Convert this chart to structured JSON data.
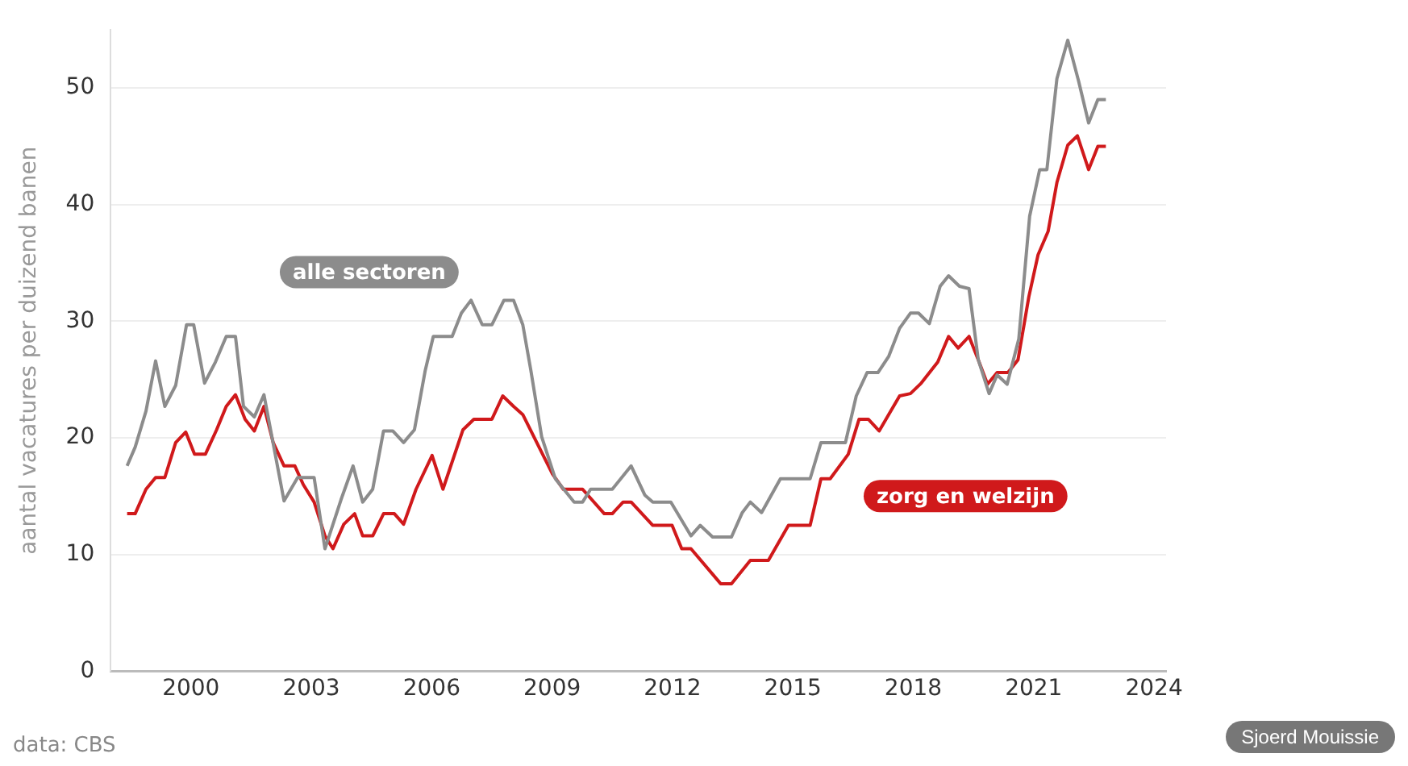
{
  "chart_data": {
    "type": "line",
    "ylabel": "aantal vacatures per duizend banen",
    "xlim": [
      1998,
      2024.3
    ],
    "xticks": [
      2000,
      2003,
      2006,
      2009,
      2012,
      2015,
      2018,
      2021,
      2024
    ],
    "ylim": [
      0,
      55
    ],
    "yticks": [
      0,
      10,
      20,
      30,
      40,
      50
    ],
    "grid": "y",
    "legend": false,
    "marker": "none",
    "line_style": "solid",
    "series": [
      {
        "name": "alle sectoren",
        "color": "#8c8c8c",
        "x": [
          1998.41,
          1998.61,
          1998.88,
          1999.12,
          1999.35,
          1999.62,
          1999.89,
          2000.07,
          2000.34,
          2000.61,
          2000.88,
          2001.11,
          2001.31,
          2001.58,
          2001.82,
          2002.32,
          2002.66,
          2003.07,
          2003.34,
          2003.74,
          2004.04,
          2004.28,
          2004.53,
          2004.8,
          2005.03,
          2005.3,
          2005.57,
          2005.84,
          2006.04,
          2006.51,
          2006.74,
          2006.98,
          2007.26,
          2007.5,
          2007.8,
          2008.04,
          2008.27,
          2008.47,
          2008.74,
          2009.08,
          2009.55,
          2009.76,
          2009.96,
          2010.5,
          2010.97,
          2011.31,
          2011.51,
          2011.96,
          2012.46,
          2012.69,
          2013.0,
          2013.47,
          2013.74,
          2013.94,
          2014.22,
          2014.69,
          2015.43,
          2015.7,
          2016.31,
          2016.58,
          2016.85,
          2017.12,
          2017.39,
          2017.66,
          2017.93,
          2018.13,
          2018.4,
          2018.67,
          2018.88,
          2019.15,
          2019.39,
          2019.62,
          2019.89,
          2020.09,
          2020.34,
          2020.63,
          2020.9,
          2021.15,
          2021.33,
          2021.58,
          2021.85,
          2022.12,
          2022.37,
          2022.6,
          2022.8
        ],
        "values": [
          17.6,
          19.2,
          22.3,
          26.6,
          22.7,
          24.5,
          29.7,
          29.7,
          24.7,
          26.5,
          28.7,
          28.7,
          22.7,
          21.8,
          23.7,
          14.6,
          16.6,
          16.6,
          10.5,
          14.7,
          17.6,
          14.5,
          15.6,
          20.6,
          20.6,
          19.6,
          20.7,
          25.8,
          28.7,
          28.7,
          30.7,
          31.8,
          29.7,
          29.7,
          31.8,
          31.8,
          29.7,
          25.8,
          20.1,
          16.5,
          14.5,
          14.5,
          15.6,
          15.6,
          17.6,
          15.1,
          14.5,
          14.5,
          11.6,
          12.5,
          11.5,
          11.5,
          13.6,
          14.5,
          13.6,
          16.5,
          16.5,
          19.6,
          19.6,
          23.6,
          25.6,
          25.6,
          27.0,
          29.4,
          30.7,
          30.7,
          29.8,
          33.0,
          33.9,
          33.0,
          32.8,
          26.7,
          23.8,
          25.4,
          24.6,
          28.5,
          39.0,
          43.0,
          43.0,
          50.8,
          54.1,
          50.6,
          47.0,
          49.0,
          49.0
        ]
      },
      {
        "name": "zorg en welzijn",
        "color": "#d0191b",
        "x": [
          1998.41,
          1998.61,
          1998.88,
          1999.12,
          1999.35,
          1999.62,
          1999.87,
          2000.09,
          2000.36,
          2000.64,
          2000.88,
          2001.11,
          2001.35,
          2001.58,
          2001.82,
          2002.05,
          2002.32,
          2002.59,
          2002.8,
          2003.07,
          2003.34,
          2003.54,
          2003.81,
          2004.08,
          2004.28,
          2004.53,
          2004.8,
          2005.07,
          2005.3,
          2005.61,
          2006.01,
          2006.28,
          2006.78,
          2007.05,
          2007.5,
          2007.77,
          2008.04,
          2008.27,
          2009.01,
          2009.28,
          2009.76,
          2010.3,
          2010.5,
          2010.77,
          2010.97,
          2011.51,
          2011.99,
          2012.23,
          2012.46,
          2013.2,
          2013.47,
          2013.94,
          2014.39,
          2014.89,
          2015.43,
          2015.7,
          2015.93,
          2016.38,
          2016.65,
          2016.88,
          2017.15,
          2017.66,
          2017.93,
          2018.2,
          2018.61,
          2018.88,
          2019.12,
          2019.39,
          2019.62,
          2019.85,
          2020.09,
          2020.36,
          2020.61,
          2020.88,
          2021.11,
          2021.36,
          2021.58,
          2021.85,
          2022.09,
          2022.37,
          2022.6,
          2022.8
        ],
        "values": [
          13.5,
          13.5,
          15.6,
          16.6,
          16.6,
          19.6,
          20.5,
          18.6,
          18.6,
          20.7,
          22.7,
          23.7,
          21.6,
          20.6,
          22.7,
          19.6,
          17.6,
          17.6,
          16.0,
          14.5,
          11.6,
          10.5,
          12.6,
          13.5,
          11.6,
          11.6,
          13.5,
          13.5,
          12.6,
          15.6,
          18.5,
          15.6,
          20.7,
          21.6,
          21.6,
          23.6,
          22.7,
          22.0,
          16.9,
          15.6,
          15.6,
          13.5,
          13.5,
          14.5,
          14.5,
          12.5,
          12.5,
          10.5,
          10.5,
          7.5,
          7.5,
          9.5,
          9.5,
          12.5,
          12.5,
          16.5,
          16.5,
          18.6,
          21.6,
          21.6,
          20.6,
          23.6,
          23.8,
          24.7,
          26.5,
          28.7,
          27.7,
          28.7,
          26.7,
          24.6,
          25.6,
          25.6,
          26.7,
          32.1,
          35.7,
          37.7,
          41.9,
          45.1,
          45.9,
          43.0,
          45.0,
          45.0
        ]
      }
    ],
    "annotations": [
      "data: CBS",
      "Sjoerd Mouissie"
    ]
  }
}
